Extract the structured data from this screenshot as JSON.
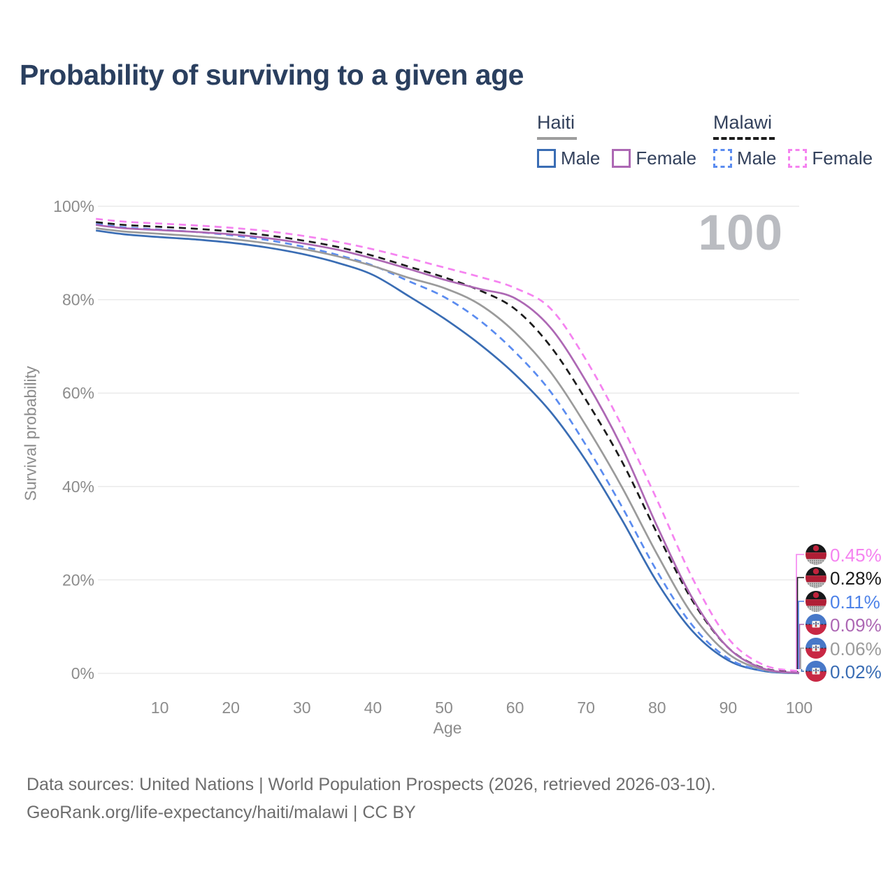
{
  "title": "Probability of surviving to a given age",
  "watermark": "100",
  "legend": {
    "groups": [
      {
        "label": "Haiti",
        "line_style": "solid",
        "underline_color": "#9e9e9e",
        "items": [
          {
            "label": "Male",
            "color": "#3a6db4",
            "dashed": false
          },
          {
            "label": "Female",
            "color": "#ad68b4",
            "dashed": false
          }
        ]
      },
      {
        "label": "Malawi",
        "line_style": "dashed",
        "underline_color": "#1c1c1c",
        "items": [
          {
            "label": "Male",
            "color": "#5b8cf0",
            "dashed": true
          },
          {
            "label": "Female",
            "color": "#f583f0",
            "dashed": true
          }
        ]
      }
    ]
  },
  "chart_data": {
    "type": "line",
    "xlabel": "Age",
    "ylabel": "Survival probability",
    "xlim": [
      0,
      100
    ],
    "ylim": [
      0,
      100
    ],
    "grid": "horizontal",
    "legend_position": "top-right",
    "x_ticks": [
      {
        "label": "10",
        "value": 10
      },
      {
        "label": "20",
        "value": 20
      },
      {
        "label": "30",
        "value": 30
      },
      {
        "label": "40",
        "value": 40
      },
      {
        "label": "50",
        "value": 50
      },
      {
        "label": "60",
        "value": 60
      },
      {
        "label": "70",
        "value": 70
      },
      {
        "label": "80",
        "value": 80
      },
      {
        "label": "90",
        "value": 90
      },
      {
        "label": "100",
        "value": 100
      }
    ],
    "y_ticks": [
      {
        "label": "0%",
        "value": 0
      },
      {
        "label": "20%",
        "value": 20
      },
      {
        "label": "40%",
        "value": 40
      },
      {
        "label": "60%",
        "value": 60
      },
      {
        "label": "80%",
        "value": 80
      },
      {
        "label": "100%",
        "value": 100
      }
    ],
    "ages": [
      1,
      5,
      10,
      15,
      20,
      25,
      30,
      35,
      40,
      45,
      50,
      55,
      60,
      65,
      70,
      75,
      80,
      85,
      90,
      95,
      100
    ],
    "series": [
      {
        "name": "Haiti — Male",
        "country": "Haiti",
        "sex": "male",
        "color": "#3a6db4",
        "dashed": false,
        "end_label": "0.02%",
        "values": [
          94.8,
          94.0,
          93.4,
          92.9,
          92.2,
          91.2,
          89.8,
          87.9,
          85.3,
          80.8,
          76.0,
          70.5,
          64.0,
          56.0,
          45.5,
          33.0,
          19.5,
          9.0,
          2.8,
          0.5,
          0.02
        ]
      },
      {
        "name": "Malawi — Male",
        "country": "Malawi",
        "sex": "male",
        "color": "#5b8cf0",
        "dashed": true,
        "end_label": "0.11%",
        "values": [
          96.2,
          95.5,
          95.0,
          94.5,
          93.8,
          92.8,
          91.4,
          89.6,
          87.3,
          84.0,
          80.6,
          75.6,
          68.8,
          60.3,
          48.8,
          35.8,
          21.8,
          10.2,
          3.2,
          0.6,
          0.11
        ]
      },
      {
        "name": "Haiti — Both sexes",
        "country": "Haiti",
        "sex": "both",
        "color": "#9b9b9b",
        "dashed": false,
        "end_label": "0.06%",
        "values": [
          95.3,
          94.6,
          94.1,
          93.6,
          93.0,
          92.1,
          90.9,
          89.3,
          87.2,
          84.7,
          82.5,
          79.0,
          73.0,
          64.5,
          53.0,
          40.0,
          25.5,
          12.5,
          4.2,
          0.8,
          0.06
        ]
      },
      {
        "name": "Malawi — Both sexes",
        "country": "Malawi",
        "sex": "both",
        "color": "#1c1c1c",
        "dashed": true,
        "end_label": "0.28%",
        "values": [
          96.6,
          96.0,
          95.6,
          95.2,
          94.6,
          93.8,
          92.7,
          91.3,
          89.4,
          87.1,
          84.8,
          82.0,
          78.0,
          70.0,
          58.5,
          45.5,
          30.0,
          15.5,
          5.5,
          1.1,
          0.28
        ]
      },
      {
        "name": "Haiti — Female",
        "country": "Haiti",
        "sex": "female",
        "color": "#ad68b4",
        "dashed": false,
        "end_label": "0.09%",
        "values": [
          96.0,
          95.3,
          94.9,
          94.5,
          94.0,
          93.2,
          92.1,
          90.7,
          88.8,
          86.6,
          84.3,
          82.3,
          80.3,
          74.0,
          62.5,
          48.5,
          31.5,
          16.0,
          5.5,
          1.0,
          0.09
        ]
      },
      {
        "name": "Malawi — Female",
        "country": "Malawi",
        "sex": "female",
        "color": "#f583f0",
        "dashed": true,
        "end_label": "0.45%",
        "values": [
          97.3,
          96.7,
          96.3,
          95.9,
          95.4,
          94.7,
          93.7,
          92.4,
          90.8,
          88.9,
          86.9,
          84.9,
          82.5,
          78.1,
          67.1,
          53.1,
          37.1,
          20.3,
          7.5,
          1.8,
          0.45
        ]
      }
    ],
    "end_labels": [
      {
        "text": "0.45%",
        "series": "Malawi — Female",
        "flag": "malawi",
        "color": "#f583f0"
      },
      {
        "text": "0.28%",
        "series": "Malawi — Both sexes",
        "flag": "malawi",
        "color": "#1c1c1c"
      },
      {
        "text": "0.11%",
        "series": "Malawi — Male",
        "flag": "malawi",
        "color": "#4d82e8"
      },
      {
        "text": "0.09%",
        "series": "Haiti — Female",
        "flag": "haiti",
        "color": "#ad68b4"
      },
      {
        "text": "0.06%",
        "series": "Haiti — Both sexes",
        "flag": "haiti",
        "color": "#9b9b9b"
      },
      {
        "text": "0.02%",
        "series": "Haiti — Male",
        "flag": "haiti",
        "color": "#3a6db4"
      }
    ]
  },
  "footer": {
    "line1": "Data sources: United Nations | World Population Prospects (2026, retrieved 2026-03-10).",
    "line2": "GeoRank.org/life-expectancy/haiti/malawi | CC BY"
  }
}
